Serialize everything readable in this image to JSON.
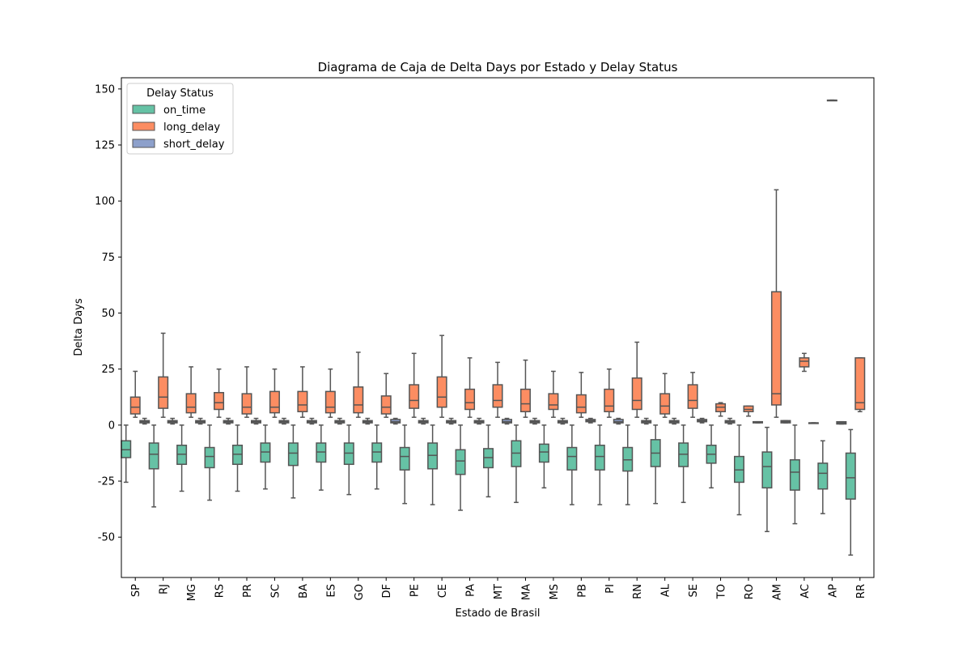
{
  "chart_data": {
    "type": "box",
    "title": "Diagrama de Caja de Delta Days por Estado y Delay Status",
    "xlabel": "Estado de Brasil",
    "ylabel": "Delta Days",
    "ylim": [
      -68,
      155
    ],
    "yticks": [
      -50,
      -25,
      0,
      25,
      50,
      75,
      100,
      125,
      150
    ],
    "grid": false,
    "legend": {
      "title": "Delay Status",
      "position": "top-left"
    },
    "categories": [
      "SP",
      "RJ",
      "MG",
      "RS",
      "PR",
      "SC",
      "BA",
      "ES",
      "GO",
      "DF",
      "PE",
      "CE",
      "PA",
      "MT",
      "MA",
      "MS",
      "PB",
      "PI",
      "RN",
      "AL",
      "SE",
      "TO",
      "RO",
      "AM",
      "AC",
      "AP",
      "RR"
    ],
    "series": [
      {
        "name": "on_time",
        "color": "#66c2a5",
        "boxes": [
          {
            "whislo": -25.5,
            "q1": -14.5,
            "med": -11.0,
            "q3": -7.0,
            "whishi": 0
          },
          {
            "whislo": -36.5,
            "q1": -19.5,
            "med": -13.0,
            "q3": -8.0,
            "whishi": 0
          },
          {
            "whislo": -29.5,
            "q1": -17.5,
            "med": -13.0,
            "q3": -9.0,
            "whishi": 0
          },
          {
            "whislo": -33.5,
            "q1": -19.0,
            "med": -14.0,
            "q3": -10.0,
            "whishi": 0
          },
          {
            "whislo": -29.5,
            "q1": -17.5,
            "med": -13.0,
            "q3": -9.0,
            "whishi": 0
          },
          {
            "whislo": -28.5,
            "q1": -16.5,
            "med": -12.0,
            "q3": -8.0,
            "whishi": 0
          },
          {
            "whislo": -32.5,
            "q1": -18.0,
            "med": -12.5,
            "q3": -8.0,
            "whishi": 0
          },
          {
            "whislo": -29.0,
            "q1": -16.5,
            "med": -12.0,
            "q3": -8.0,
            "whishi": 0
          },
          {
            "whislo": -31.0,
            "q1": -17.5,
            "med": -12.5,
            "q3": -8.0,
            "whishi": 0
          },
          {
            "whislo": -28.5,
            "q1": -16.5,
            "med": -12.0,
            "q3": -8.0,
            "whishi": 0
          },
          {
            "whislo": -35.0,
            "q1": -20.0,
            "med": -14.0,
            "q3": -10.0,
            "whishi": 0
          },
          {
            "whislo": -35.5,
            "q1": -19.5,
            "med": -13.5,
            "q3": -8.0,
            "whishi": 0
          },
          {
            "whislo": -38.0,
            "q1": -22.0,
            "med": -16.0,
            "q3": -11.0,
            "whishi": 0
          },
          {
            "whislo": -32.0,
            "q1": -19.0,
            "med": -14.5,
            "q3": -10.5,
            "whishi": 0
          },
          {
            "whislo": -34.5,
            "q1": -18.5,
            "med": -12.5,
            "q3": -7.0,
            "whishi": 0
          },
          {
            "whislo": -28.0,
            "q1": -16.5,
            "med": -12.0,
            "q3": -8.5,
            "whishi": 0
          },
          {
            "whislo": -35.5,
            "q1": -20.0,
            "med": -14.0,
            "q3": -10.0,
            "whishi": 0
          },
          {
            "whislo": -35.5,
            "q1": -20.0,
            "med": -14.0,
            "q3": -9.0,
            "whishi": 0
          },
          {
            "whislo": -35.5,
            "q1": -20.5,
            "med": -15.5,
            "q3": -10.0,
            "whishi": 0
          },
          {
            "whislo": -35.0,
            "q1": -18.5,
            "med": -12.5,
            "q3": -6.5,
            "whishi": 0
          },
          {
            "whislo": -34.5,
            "q1": -18.5,
            "med": -13.0,
            "q3": -8.0,
            "whishi": 0
          },
          {
            "whislo": -28.0,
            "q1": -17.0,
            "med": -13.0,
            "q3": -9.0,
            "whishi": 0
          },
          {
            "whislo": -40.0,
            "q1": -25.5,
            "med": -20.0,
            "q3": -14.0,
            "whishi": 0
          },
          {
            "whislo": -47.5,
            "q1": -28.0,
            "med": -18.5,
            "q3": -12.0,
            "whishi": -1.0
          },
          {
            "whislo": -44.0,
            "q1": -29.0,
            "med": -21.0,
            "q3": -15.5,
            "whishi": 0
          },
          {
            "whislo": -39.5,
            "q1": -28.5,
            "med": -21.5,
            "q3": -17.0,
            "whishi": -7.0
          },
          {
            "whislo": -58.0,
            "q1": -33.0,
            "med": -23.5,
            "q3": -12.5,
            "whishi": -2.0
          }
        ]
      },
      {
        "name": "long_delay",
        "color": "#fc8d62",
        "boxes": [
          {
            "whislo": 3.5,
            "q1": 5.0,
            "med": 8.0,
            "q3": 12.5,
            "whishi": 24.0
          },
          {
            "whislo": 3.5,
            "q1": 7.5,
            "med": 12.5,
            "q3": 21.5,
            "whishi": 41.0
          },
          {
            "whislo": 3.5,
            "q1": 5.5,
            "med": 8.0,
            "q3": 14.0,
            "whishi": 26.0
          },
          {
            "whislo": 3.5,
            "q1": 7.0,
            "med": 10.0,
            "q3": 14.5,
            "whishi": 25.0
          },
          {
            "whislo": 3.5,
            "q1": 5.0,
            "med": 8.0,
            "q3": 14.0,
            "whishi": 26.0
          },
          {
            "whislo": 3.5,
            "q1": 5.5,
            "med": 8.0,
            "q3": 15.0,
            "whishi": 25.0
          },
          {
            "whislo": 3.5,
            "q1": 6.0,
            "med": 9.0,
            "q3": 15.0,
            "whishi": 26.0
          },
          {
            "whislo": 3.5,
            "q1": 5.5,
            "med": 8.0,
            "q3": 15.0,
            "whishi": 25.0
          },
          {
            "whislo": 3.5,
            "q1": 5.5,
            "med": 9.0,
            "q3": 17.0,
            "whishi": 32.5
          },
          {
            "whislo": 3.5,
            "q1": 5.0,
            "med": 8.0,
            "q3": 13.0,
            "whishi": 23.0
          },
          {
            "whislo": 3.5,
            "q1": 7.5,
            "med": 11.0,
            "q3": 18.0,
            "whishi": 32.0
          },
          {
            "whislo": 3.5,
            "q1": 8.0,
            "med": 12.5,
            "q3": 21.5,
            "whishi": 40.0
          },
          {
            "whislo": 3.5,
            "q1": 7.0,
            "med": 10.0,
            "q3": 16.0,
            "whishi": 30.0
          },
          {
            "whislo": 3.5,
            "q1": 8.0,
            "med": 11.0,
            "q3": 18.0,
            "whishi": 28.0
          },
          {
            "whislo": 3.5,
            "q1": 6.0,
            "med": 9.5,
            "q3": 16.0,
            "whishi": 29.0
          },
          {
            "whislo": 3.5,
            "q1": 7.0,
            "med": 9.0,
            "q3": 14.0,
            "whishi": 24.0
          },
          {
            "whislo": 3.5,
            "q1": 5.5,
            "med": 8.0,
            "q3": 13.5,
            "whishi": 23.5
          },
          {
            "whislo": 3.5,
            "q1": 6.0,
            "med": 8.5,
            "q3": 16.0,
            "whishi": 25.0
          },
          {
            "whislo": 3.5,
            "q1": 7.0,
            "med": 11.0,
            "q3": 21.0,
            "whishi": 37.0
          },
          {
            "whislo": 3.5,
            "q1": 5.0,
            "med": 8.5,
            "q3": 14.0,
            "whishi": 23.0
          },
          {
            "whislo": 3.5,
            "q1": 7.5,
            "med": 11.0,
            "q3": 18.0,
            "whishi": 23.5
          },
          {
            "whislo": 4.0,
            "q1": 6.0,
            "med": 8.0,
            "q3": 9.5,
            "whishi": 10.0
          },
          {
            "whislo": 4.0,
            "q1": 6.0,
            "med": 7.0,
            "q3": 8.5,
            "whishi": 8.5
          },
          {
            "whislo": 3.5,
            "q1": 9.0,
            "med": 14.0,
            "q3": 59.5,
            "whishi": 105.0
          },
          {
            "whislo": 24.0,
            "q1": 26.0,
            "med": 28.5,
            "q3": 30.0,
            "whishi": 32.0
          },
          {
            "whislo": 145.0,
            "q1": 145.0,
            "med": 145.0,
            "q3": 145.0,
            "whishi": 145.0
          },
          {
            "whislo": 6.0,
            "q1": 7.0,
            "med": 10.0,
            "q3": 30.0,
            "whishi": 30.0
          }
        ]
      },
      {
        "name": "short_delay",
        "color": "#8da0cb",
        "boxes": [
          {
            "whislo": 0.5,
            "q1": 1.0,
            "med": 1.5,
            "q3": 2.0,
            "whishi": 3.0
          },
          {
            "whislo": 0.5,
            "q1": 1.0,
            "med": 1.5,
            "q3": 2.0,
            "whishi": 3.0
          },
          {
            "whislo": 0.5,
            "q1": 1.0,
            "med": 1.5,
            "q3": 2.0,
            "whishi": 3.0
          },
          {
            "whislo": 0.5,
            "q1": 1.0,
            "med": 1.5,
            "q3": 2.0,
            "whishi": 3.0
          },
          {
            "whislo": 0.5,
            "q1": 1.0,
            "med": 1.5,
            "q3": 2.0,
            "whishi": 3.0
          },
          {
            "whislo": 0.5,
            "q1": 1.0,
            "med": 1.5,
            "q3": 2.0,
            "whishi": 3.0
          },
          {
            "whislo": 0.5,
            "q1": 1.0,
            "med": 1.5,
            "q3": 2.0,
            "whishi": 3.0
          },
          {
            "whislo": 0.5,
            "q1": 1.0,
            "med": 1.5,
            "q3": 2.0,
            "whishi": 3.0
          },
          {
            "whislo": 0.5,
            "q1": 1.0,
            "med": 1.5,
            "q3": 2.0,
            "whishi": 3.0
          },
          {
            "whislo": 0.5,
            "q1": 1.0,
            "med": 1.5,
            "q3": 2.5,
            "whishi": 3.0
          },
          {
            "whislo": 0.5,
            "q1": 1.0,
            "med": 1.5,
            "q3": 2.0,
            "whishi": 3.0
          },
          {
            "whislo": 0.5,
            "q1": 1.0,
            "med": 1.5,
            "q3": 2.0,
            "whishi": 3.0
          },
          {
            "whislo": 0.5,
            "q1": 1.0,
            "med": 1.5,
            "q3": 2.0,
            "whishi": 3.0
          },
          {
            "whislo": 0.5,
            "q1": 1.0,
            "med": 1.5,
            "q3": 2.5,
            "whishi": 3.0
          },
          {
            "whislo": 0.5,
            "q1": 1.0,
            "med": 1.5,
            "q3": 2.0,
            "whishi": 3.0
          },
          {
            "whislo": 0.5,
            "q1": 1.0,
            "med": 1.5,
            "q3": 2.0,
            "whishi": 3.0
          },
          {
            "whislo": 1.0,
            "q1": 1.5,
            "med": 2.0,
            "q3": 2.5,
            "whishi": 3.0
          },
          {
            "whislo": 0.5,
            "q1": 1.0,
            "med": 1.5,
            "q3": 2.5,
            "whishi": 3.0
          },
          {
            "whislo": 0.5,
            "q1": 1.0,
            "med": 1.5,
            "q3": 2.0,
            "whishi": 3.0
          },
          {
            "whislo": 0.5,
            "q1": 1.0,
            "med": 1.5,
            "q3": 2.0,
            "whishi": 3.0
          },
          {
            "whislo": 1.0,
            "q1": 1.5,
            "med": 2.0,
            "q3": 2.5,
            "whishi": 3.0
          },
          {
            "whislo": 0.5,
            "q1": 1.0,
            "med": 1.5,
            "q3": 2.0,
            "whishi": 3.0
          },
          {
            "whislo": 1.0,
            "q1": 1.0,
            "med": 1.5,
            "q3": 1.5,
            "whishi": 1.5
          },
          {
            "whislo": 1.0,
            "q1": 1.0,
            "med": 1.5,
            "q3": 2.0,
            "whishi": 2.0
          },
          {
            "whislo": 1.0,
            "q1": 1.0,
            "med": 1.0,
            "q3": 1.0,
            "whishi": 1.0
          },
          {
            "whislo": 0.5,
            "q1": 0.5,
            "med": 1.0,
            "q3": 1.5,
            "whishi": 1.5
          },
          null
        ]
      }
    ]
  }
}
